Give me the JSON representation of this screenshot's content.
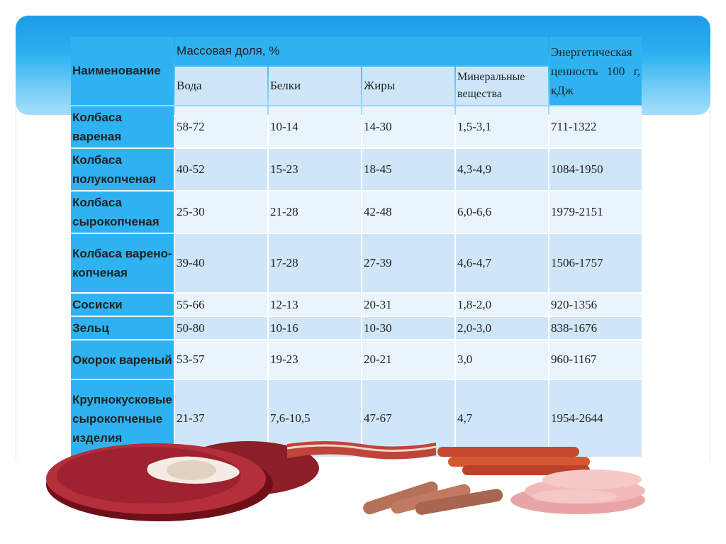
{
  "table": {
    "header": {
      "name": "Наименование",
      "mass_fraction": "Массовая доля, %",
      "energy": "Энергетическая ценность 100 г, кДж",
      "sub": [
        "Вода",
        "Белки",
        "Жиры",
        "Минеральные вещества"
      ]
    },
    "rows": [
      {
        "name": "Колбаса вареная",
        "values": [
          "58-72",
          "10-14",
          "14-30",
          "1,5-3,1",
          "711-1322"
        ]
      },
      {
        "name": "Колбаса полукопченая",
        "values": [
          "40-52",
          "15-23",
          "18-45",
          "4,3-4,9",
          "1084-1950"
        ]
      },
      {
        "name": "Колбаса сырокопченая",
        "values": [
          "25-30",
          "21-28",
          "42-48",
          "6,0-6,6",
          "1979-2151"
        ]
      },
      {
        "name": "Колбаса варено-копченая",
        "values": [
          "39-40",
          "17-28",
          "27-39",
          "4,6-4,7",
          "1506-1757"
        ]
      },
      {
        "name": "Сосиски",
        "values": [
          "55-66",
          "12-13",
          "20-31",
          "1,8-2,0",
          "920-1356"
        ]
      },
      {
        "name": "Зельц",
        "values": [
          "50-80",
          "10-16",
          "10-30",
          "2,0-3,0",
          "838-1676"
        ]
      },
      {
        "name": "Окорок вареный",
        "values": [
          "53-57",
          "19-23",
          "20-21",
          "3,0",
          "960-1167"
        ]
      },
      {
        "name": "Крупнокусковые сырокопченые изделия",
        "values": [
          "21-37",
          "7,6-10,5",
          "47-67",
          "4,7",
          "1954-2644"
        ]
      }
    ]
  },
  "colors": {
    "accent": "#2fb2f2",
    "row_light": "#e9f4fc",
    "row_dark": "#cfe6f8"
  },
  "images": [
    "raw-beef-steak",
    "bacon-strips",
    "sausages",
    "hot-dogs",
    "sliced-ham"
  ]
}
